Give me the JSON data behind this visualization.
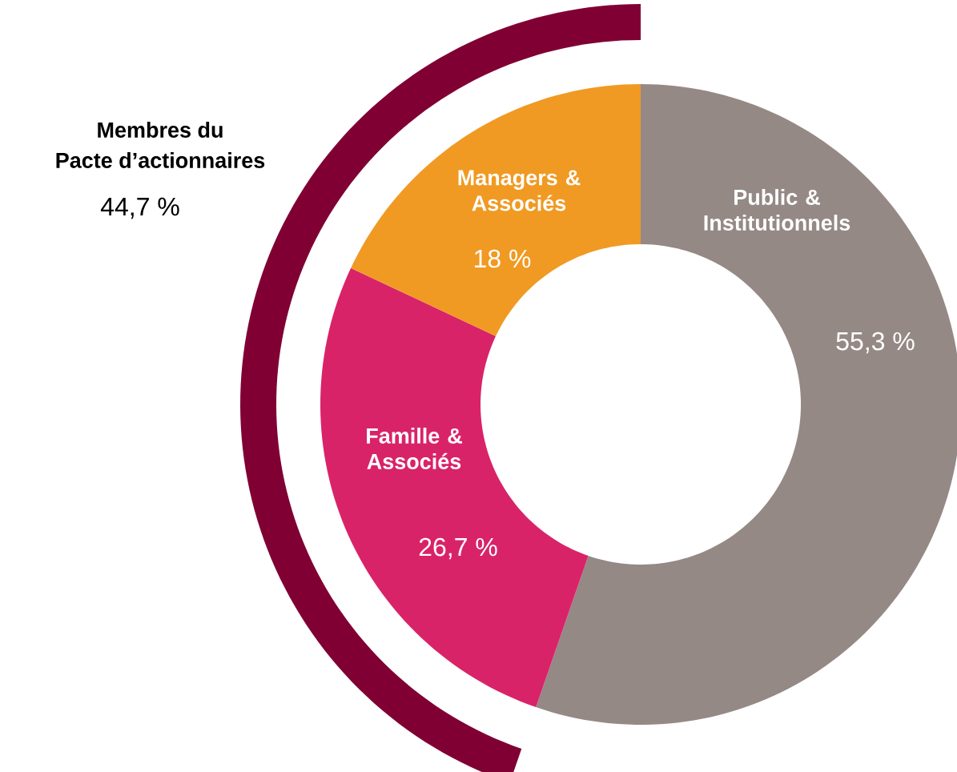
{
  "chart_data": {
    "type": "donut",
    "categories": [
      "Public & Institutionnels",
      "Famille & Associés",
      "Managers & Associés"
    ],
    "values": [
      55.3,
      26.7,
      18
    ],
    "colors": [
      "#958985",
      "#d92369",
      "#f09a23"
    ],
    "value_labels": [
      "55,3 %",
      "26,7 %",
      "18 %"
    ],
    "annotations": [
      "Membres du",
      "Pacte d’actionnaires",
      "44,7 %"
    ]
  }
}
